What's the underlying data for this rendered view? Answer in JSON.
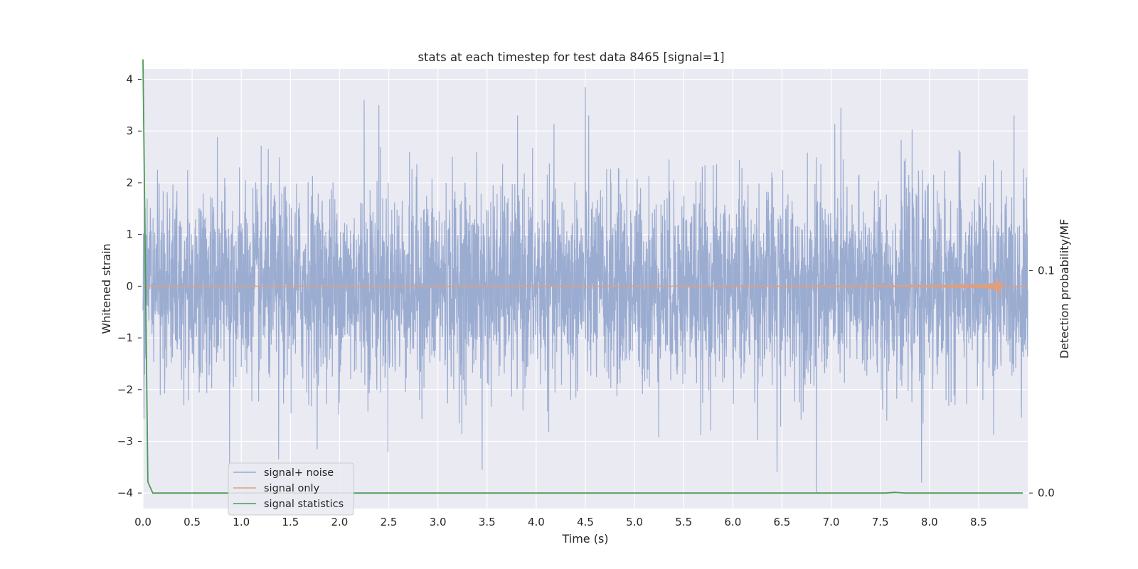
{
  "chart_data": {
    "type": "line",
    "title": "stats at each timestep for test data 8465 [signal=1]",
    "xlabel": "Time (s)",
    "ylabel": "Whitened strain",
    "y2label": "Detection probability/MF",
    "xlim": [
      0.0,
      9.0
    ],
    "ylim": [
      -4.3,
      4.2
    ],
    "y2_ticks": [
      {
        "value": 0.0,
        "label": "0.0"
      },
      {
        "value": 0.1,
        "label": "0.1"
      }
    ],
    "x_ticks": [
      "0.0",
      "0.5",
      "1.0",
      "1.5",
      "2.0",
      "2.5",
      "3.0",
      "3.5",
      "4.0",
      "4.5",
      "5.0",
      "5.5",
      "6.0",
      "6.5",
      "7.0",
      "7.5",
      "8.0",
      "8.5"
    ],
    "y_ticks": [
      "4",
      "3",
      "2",
      "1",
      "0",
      "−1",
      "−2",
      "−3",
      "−4"
    ],
    "grid": true,
    "legend_position": "lower-left",
    "background": "#eaeaf2",
    "series": [
      {
        "name": "signal+ noise",
        "color": "#97a9cf",
        "description_kind": "noise",
        "duration_s": 9.0,
        "std": 1.0,
        "notable_peaks": [
          {
            "x": 4.5,
            "y": 3.85
          },
          {
            "x": 2.25,
            "y": 3.6
          },
          {
            "x": 2.4,
            "y": 3.5
          },
          {
            "x": 7.1,
            "y": 3.45
          },
          {
            "x": 6.85,
            "y": -4.0
          },
          {
            "x": 0.88,
            "y": -3.5
          },
          {
            "x": 1.38,
            "y": -3.35
          },
          {
            "x": 3.45,
            "y": -3.55
          },
          {
            "x": 6.45,
            "y": -3.6
          },
          {
            "x": 7.92,
            "y": -3.8
          }
        ]
      },
      {
        "name": "signal only",
        "color": "#dd9f80",
        "description_kind": "chirp",
        "merger_time_s": 8.7,
        "peak_amplitude": 0.25
      },
      {
        "name": "signal statistics",
        "color": "#4c9a55",
        "axis": "right",
        "x": [
          0.0,
          0.05,
          0.1,
          0.12,
          7.55,
          7.65,
          7.75,
          7.85,
          8.95
        ],
        "y": [
          0.195,
          0.005,
          0.0,
          0.0,
          0.0,
          0.0003,
          0.0,
          0.0,
          0.0
        ]
      }
    ]
  }
}
